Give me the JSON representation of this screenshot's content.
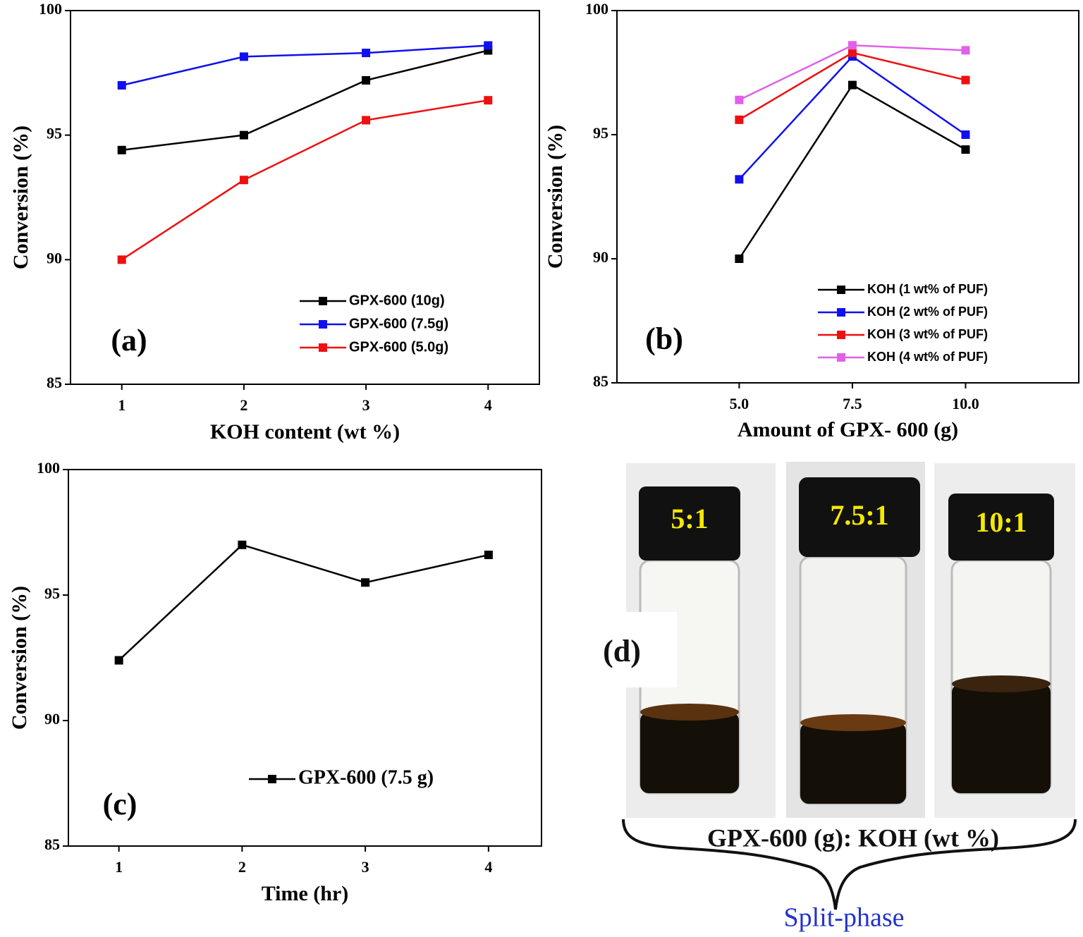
{
  "chart_data": [
    {
      "type": "line",
      "annotation": "(a)",
      "x_label": "KOH content (wt %)",
      "y_label": "Conversion (%)",
      "x": [
        1,
        2,
        3,
        4
      ],
      "xlim": [
        0.58,
        4.42
      ],
      "xticks": [
        1,
        2,
        3,
        4
      ],
      "ylim": [
        85,
        100
      ],
      "yticks": [
        85,
        90,
        95,
        100
      ],
      "legend": "lower right",
      "series": [
        {
          "name": "GPX-600 (10g)",
          "color": "#000000",
          "values": [
            94.4,
            95.0,
            97.2,
            98.4
          ]
        },
        {
          "name": "GPX-600 (7.5g)",
          "color": "#1010ee",
          "values": [
            97.0,
            98.15,
            98.3,
            98.6
          ]
        },
        {
          "name": "GPX-600 (5.0g)",
          "color": "#ee1010",
          "values": [
            90.0,
            93.2,
            95.6,
            96.4
          ]
        }
      ]
    },
    {
      "type": "line",
      "annotation": "(b)",
      "x_label": "Amount of GPX- 600 (g)",
      "y_label": "Conversion (%)",
      "x": [
        5,
        7.5,
        10
      ],
      "xlim": [
        2.3,
        12.5
      ],
      "xticks": [
        {
          "value": 5,
          "label": "5.0"
        },
        7.5,
        {
          "value": 10,
          "label": "10.0"
        }
      ],
      "ylim": [
        85,
        100
      ],
      "yticks": [
        85,
        90,
        95,
        100
      ],
      "legend": "lower right",
      "series": [
        {
          "name": "KOH (1 wt% of PUF)",
          "color": "#000000",
          "values": [
            90.0,
            97.0,
            94.4
          ]
        },
        {
          "name": "KOH (2 wt% of PUF)",
          "color": "#1010ee",
          "values": [
            93.2,
            98.15,
            95.0
          ]
        },
        {
          "name": "KOH (3 wt% of PUF)",
          "color": "#ee1010",
          "values": [
            95.6,
            98.3,
            97.2
          ]
        },
        {
          "name": "KOH (4 wt% of PUF)",
          "color": "#e060e8",
          "values": [
            96.4,
            98.6,
            98.4
          ]
        }
      ]
    },
    {
      "type": "line",
      "annotation": "(c)",
      "x_label": "Time (hr)",
      "y_label": "Conversion (%)",
      "x": [
        1,
        2,
        3,
        4
      ],
      "xlim": [
        0.59,
        4.43
      ],
      "xticks": [
        1,
        2,
        3,
        4
      ],
      "ylim": [
        85,
        100
      ],
      "yticks": [
        85,
        90,
        95,
        100
      ],
      "legend": "lower right",
      "series": [
        {
          "name": "GPX-600 (7.5 g)",
          "color": "#000000",
          "values": [
            92.4,
            97.0,
            95.5,
            96.6
          ]
        }
      ]
    }
  ],
  "photo_panel": {
    "annotation": "(d)",
    "vial_labels": [
      "5:1",
      "7.5:1",
      "10:1"
    ],
    "caption": "GPX-600 (g): KOH (wt %)",
    "brace_label": "Split-phase"
  }
}
